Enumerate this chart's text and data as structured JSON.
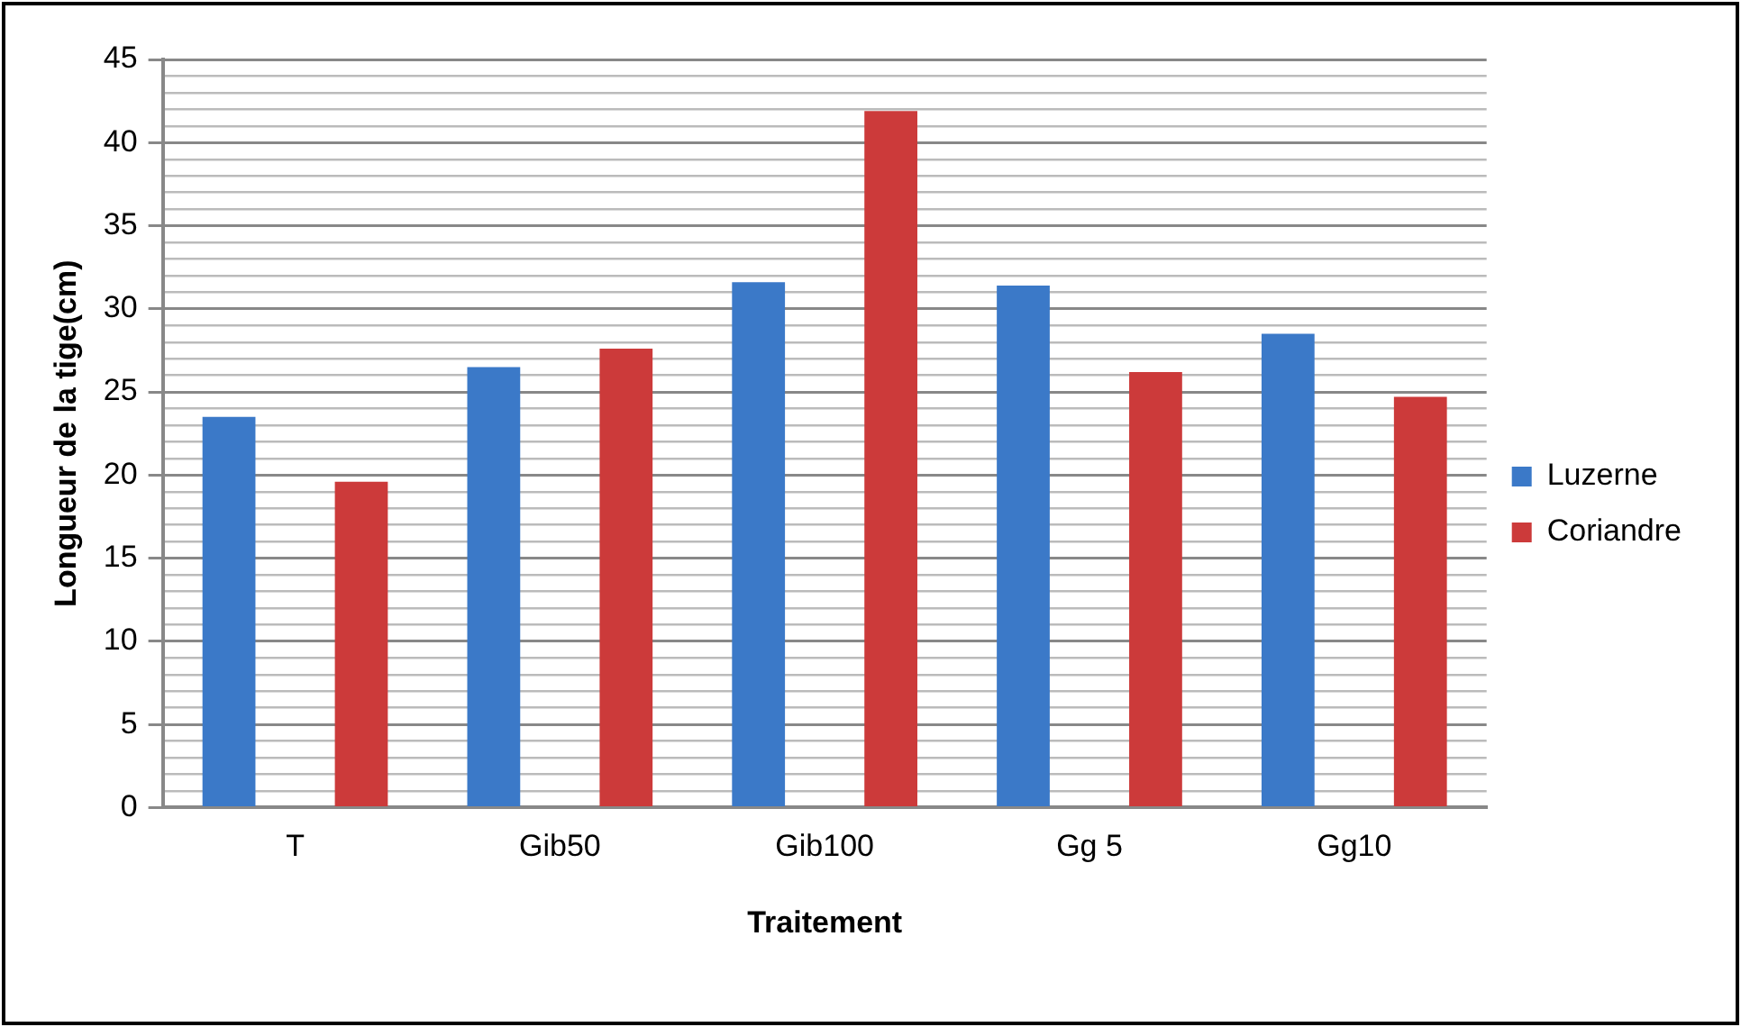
{
  "chart_data": {
    "type": "bar",
    "xlabel": "Traitement",
    "ylabel": "Longueur de la tige(cm)",
    "categories": [
      "T",
      "Gib50",
      "Gib100",
      "Gg 5",
      "Gg10"
    ],
    "series": [
      {
        "name": "Luzerne",
        "color": "#3b79c8",
        "values": [
          23.5,
          26.5,
          31.6,
          31.4,
          28.5
        ]
      },
      {
        "name": "Coriandre",
        "color": "#cc3a3a",
        "values": [
          19.6,
          27.6,
          41.9,
          26.2,
          24.7
        ]
      }
    ],
    "ylim": [
      0,
      45
    ],
    "yticks": [
      0,
      {
        "value": 1,
        "label": null
      },
      {
        "value": 2,
        "label": null
      },
      {
        "value": 3,
        "label": null
      },
      {
        "value": 4,
        "label": null
      },
      5,
      {
        "value": 6,
        "label": null
      },
      {
        "value": 7,
        "label": null
      },
      {
        "value": 8,
        "label": null
      },
      {
        "value": 9,
        "label": null
      },
      10,
      {
        "value": 11,
        "label": null
      },
      {
        "value": 12,
        "label": null
      },
      {
        "value": 13,
        "label": null
      },
      {
        "value": 14,
        "label": null
      },
      15,
      {
        "value": 16,
        "label": null
      },
      {
        "value": 17,
        "label": null
      },
      {
        "value": 18,
        "label": null
      },
      {
        "value": 19,
        "label": null
      },
      20,
      {
        "value": 21,
        "label": null
      },
      {
        "value": 22,
        "label": null
      },
      {
        "value": 23,
        "label": null
      },
      {
        "value": 24,
        "label": null
      },
      25,
      {
        "value": 26,
        "label": null
      },
      {
        "value": 27,
        "label": null
      },
      {
        "value": 28,
        "label": null
      },
      {
        "value": 29,
        "label": null
      },
      30,
      {
        "value": 31,
        "label": null
      },
      {
        "value": 32,
        "label": null
      },
      {
        "value": 33,
        "label": null
      },
      {
        "value": 34,
        "label": null
      },
      35,
      {
        "value": 36,
        "label": null
      },
      {
        "value": 37,
        "label": null
      },
      {
        "value": 38,
        "label": null
      },
      {
        "value": 39,
        "label": null
      },
      40,
      {
        "value": 41,
        "label": null
      },
      {
        "value": 42,
        "label": null
      },
      {
        "value": 43,
        "label": null
      },
      {
        "value": 44,
        "label": null
      },
      45
    ],
    "grid": "y",
    "legend": "right"
  }
}
